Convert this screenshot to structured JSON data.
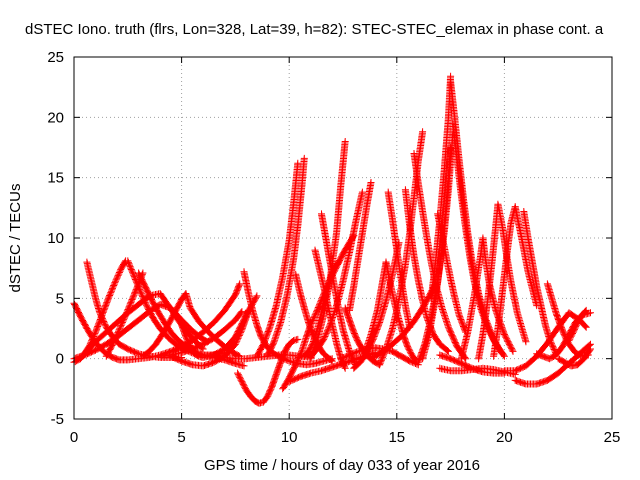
{
  "chart_data": {
    "type": "scatter",
    "title": "dSTEC Iono. truth (flrs, Lon=328, Lat=39, h=82): STEC-STEC_elemax in phase cont. a",
    "xlabel": "GPS time / hours of day 033 of year 2016",
    "ylabel": "dSTEC  / TECUs",
    "xlim": [
      0,
      25
    ],
    "ylim": [
      -5,
      25
    ],
    "xticks": [
      0,
      5,
      10,
      15,
      20,
      25
    ],
    "yticks": [
      -5,
      0,
      5,
      10,
      15,
      20,
      25
    ],
    "grid": true,
    "marker": "+",
    "color": "#ff0000",
    "series": [
      {
        "x": [
          0.0,
          0.5,
          1.0,
          1.5,
          2.0,
          2.5,
          3.0,
          3.5,
          4.0,
          4.5,
          5.0,
          5.5,
          6.0,
          6.2
        ],
        "y": [
          0.0,
          0.3,
          0.7,
          1.2,
          1.8,
          2.5,
          3.2,
          3.9,
          4.5,
          4.2,
          3.2,
          2.3,
          1.6,
          1.4
        ]
      },
      {
        "x": [
          0.0,
          0.3,
          0.6,
          0.9,
          1.2,
          1.5,
          1.8,
          2.1,
          2.5,
          3.0,
          3.5,
          4.0,
          4.5,
          5.0,
          5.5,
          6.0,
          6.5,
          7.0,
          7.5,
          7.7
        ],
        "y": [
          4.6,
          3.5,
          2.5,
          1.6,
          0.9,
          0.4,
          0.1,
          -0.1,
          -0.1,
          0.0,
          0.1,
          0.3,
          0.6,
          1.0,
          1.5,
          2.2,
          3.0,
          4.0,
          5.3,
          6.2
        ]
      },
      {
        "x": [
          0.0,
          0.3,
          0.6,
          1.0,
          1.5,
          2.0,
          2.5,
          3.0,
          3.5,
          4.0,
          4.5,
          5.0,
          5.5,
          6.0
        ],
        "y": [
          -0.3,
          0.0,
          0.6,
          1.4,
          2.2,
          3.0,
          3.8,
          4.5,
          5.2,
          5.4,
          4.1,
          2.8,
          1.7,
          0.8
        ]
      },
      {
        "x": [
          0.6,
          0.8,
          1.0,
          1.2,
          1.5,
          1.8,
          2.1,
          2.5,
          3.0,
          3.5,
          4.0,
          4.5,
          5.0
        ],
        "y": [
          8.0,
          6.5,
          5.0,
          3.8,
          2.6,
          1.8,
          1.2,
          0.8,
          0.4,
          0.2,
          0.1,
          0.1,
          0.1
        ]
      },
      {
        "x": [
          0.4,
          0.7,
          1.0,
          1.3,
          1.6,
          1.9,
          2.2,
          2.4
        ],
        "y": [
          0.2,
          1.0,
          2.2,
          3.6,
          5.0,
          6.3,
          7.5,
          8.1
        ]
      },
      {
        "x": [
          2.5,
          2.8,
          3.1,
          3.4,
          3.7,
          4.0,
          4.4,
          4.8,
          5.2,
          5.6,
          6.0,
          6.4,
          6.8,
          7.0
        ],
        "y": [
          8.1,
          6.8,
          5.5,
          4.3,
          3.3,
          2.5,
          1.7,
          1.1,
          0.7,
          0.4,
          0.3,
          0.3,
          0.4,
          0.5
        ]
      },
      {
        "x": [
          1.5,
          1.8,
          2.1,
          2.4,
          2.7,
          3.0,
          3.2
        ],
        "y": [
          0.2,
          1.2,
          2.4,
          3.6,
          4.9,
          6.2,
          7.1
        ]
      },
      {
        "x": [
          3.0,
          3.3,
          3.6,
          3.9,
          4.2,
          4.5,
          4.8,
          5.2,
          5.6,
          6.0,
          6.5,
          7.0,
          7.5,
          7.9
        ],
        "y": [
          7.1,
          6.0,
          4.9,
          3.9,
          3.0,
          2.2,
          1.6,
          1.0,
          0.6,
          0.3,
          0.1,
          -0.1,
          -0.4,
          -0.6
        ]
      },
      {
        "x": [
          3.2,
          3.5,
          3.8,
          4.1,
          4.4,
          4.7,
          5.0,
          5.2,
          5.4,
          5.8,
          6.2,
          6.6,
          7.0,
          7.4,
          7.7
        ],
        "y": [
          0.2,
          0.6,
          1.2,
          2.0,
          2.9,
          3.9,
          4.9,
          5.4,
          4.2,
          3.1,
          2.3,
          1.6,
          1.0,
          0.5,
          0.2
        ]
      },
      {
        "x": [
          4.0,
          4.5,
          5.0,
          5.5,
          6.0,
          6.5,
          7.0,
          7.5,
          7.8
        ],
        "y": [
          0.2,
          0.3,
          0.5,
          0.8,
          1.2,
          1.7,
          2.4,
          3.2,
          3.9
        ]
      },
      {
        "x": [
          5.0,
          5.2,
          5.4,
          5.6,
          5.8,
          6.0,
          6.5,
          7.0,
          7.5,
          8.0,
          8.5
        ],
        "y": [
          2.8,
          1.8,
          1.0,
          0.4,
          0.2,
          0.1,
          0.3,
          0.8,
          1.8,
          3.6,
          5.2
        ]
      },
      {
        "x": [
          4.5,
          5.0,
          5.5,
          6.0,
          6.5,
          7.0,
          7.5,
          7.8,
          8.0,
          8.1
        ],
        "y": [
          0.2,
          -0.2,
          -0.5,
          -0.6,
          -0.3,
          0.2,
          1.2,
          2.4,
          3.4,
          4.0
        ]
      },
      {
        "x": [
          7.6,
          7.8,
          8.0,
          8.2,
          8.4,
          8.6,
          8.8,
          9.0,
          9.2,
          9.4,
          9.6,
          9.8,
          10.0,
          10.2,
          10.4
        ],
        "y": [
          -1.2,
          -1.9,
          -2.6,
          -3.1,
          -3.5,
          -3.7,
          -3.6,
          -3.1,
          -2.3,
          -1.3,
          -0.3,
          0.6,
          1.2,
          1.5,
          1.6
        ]
      },
      {
        "x": [
          7.9,
          8.1,
          8.3,
          8.5,
          8.7,
          9.0,
          9.3,
          9.6,
          10.0,
          10.4,
          10.8,
          11.2,
          11.6,
          12.0
        ],
        "y": [
          7.2,
          5.5,
          4.0,
          2.8,
          1.8,
          0.9,
          0.4,
          0.1,
          -0.2,
          -0.4,
          -0.5,
          -0.4,
          -0.2,
          0.0
        ]
      },
      {
        "x": [
          6.5,
          7.0,
          7.5,
          8.0,
          8.5,
          9.0,
          9.5,
          10.0,
          10.5,
          11.0
        ],
        "y": [
          0.3,
          0.1,
          0.0,
          0.0,
          0.1,
          0.2,
          0.3,
          0.3,
          0.2,
          0.1
        ]
      },
      {
        "x": [
          8.5,
          8.8,
          9.1,
          9.4,
          9.7,
          10.0,
          10.2,
          10.4
        ],
        "y": [
          0.2,
          1.2,
          2.6,
          4.4,
          6.8,
          9.8,
          12.8,
          16.2
        ]
      },
      {
        "x": [
          9.0,
          9.3,
          9.6,
          9.9,
          10.2,
          10.4,
          10.6,
          10.7
        ],
        "y": [
          0.3,
          1.4,
          3.0,
          5.2,
          8.2,
          11.0,
          14.5,
          16.6
        ]
      },
      {
        "x": [
          9.7,
          10.0,
          10.3,
          10.6,
          10.8,
          11.0,
          11.3,
          11.6,
          12.0,
          12.5,
          13.0
        ],
        "y": [
          -2.5,
          -1.6,
          -0.5,
          0.7,
          1.8,
          2.8,
          4.0,
          5.3,
          6.9,
          8.7,
          10.2
        ]
      },
      {
        "x": [
          10.0,
          10.5,
          11.0,
          11.5,
          12.0,
          12.5,
          13.0,
          13.5,
          14.0
        ],
        "y": [
          -1.9,
          -1.5,
          -1.2,
          -1.0,
          -0.7,
          -0.4,
          -0.1,
          0.2,
          0.5
        ]
      },
      {
        "x": [
          10.3,
          10.5,
          10.7,
          10.9,
          11.1,
          11.3,
          11.6,
          12.0
        ],
        "y": [
          7.0,
          5.5,
          4.2,
          3.0,
          2.0,
          1.2,
          0.4,
          -0.2
        ]
      },
      {
        "x": [
          10.7,
          10.9,
          11.1,
          11.3,
          11.5,
          11.7,
          11.9,
          12.1,
          12.3
        ],
        "y": [
          0.2,
          0.6,
          1.3,
          2.4,
          3.8,
          5.2,
          6.6,
          7.6,
          8.0
        ]
      },
      {
        "x": [
          11.0,
          11.3,
          11.6,
          11.9,
          12.2,
          12.5,
          12.8,
          13.1,
          13.4
        ],
        "y": [
          0.2,
          0.8,
          1.6,
          2.8,
          4.4,
          6.4,
          8.8,
          11.4,
          13.8
        ]
      },
      {
        "x": [
          11.0,
          11.3,
          11.6,
          11.9,
          12.2,
          12.4,
          12.6
        ],
        "y": [
          0.0,
          1.5,
          3.6,
          6.6,
          10.4,
          14.4,
          18.0
        ]
      },
      {
        "x": [
          11.2,
          11.4,
          11.6,
          11.8,
          12.0,
          12.2,
          12.4,
          12.6
        ],
        "y": [
          9.0,
          7.5,
          6.0,
          4.4,
          2.8,
          1.3,
          0.0,
          -0.8
        ]
      },
      {
        "x": [
          11.5,
          11.7,
          11.9,
          12.1,
          12.3,
          12.5,
          12.8,
          13.1
        ],
        "y": [
          12.0,
          10.0,
          8.0,
          6.0,
          4.1,
          2.4,
          0.6,
          -0.6
        ]
      },
      {
        "x": [
          12.4,
          12.8,
          13.2,
          13.6,
          14.0,
          14.4,
          14.8,
          15.2,
          15.6,
          16.0
        ],
        "y": [
          0.0,
          0.3,
          0.6,
          0.8,
          0.9,
          0.8,
          0.6,
          0.2,
          -0.2,
          -0.5
        ]
      },
      {
        "x": [
          12.6,
          12.8,
          13.0,
          13.2,
          13.4,
          13.6,
          13.9,
          14.2
        ],
        "y": [
          4.2,
          3.2,
          2.2,
          1.4,
          0.8,
          0.3,
          -0.2,
          -0.5
        ]
      },
      {
        "x": [
          12.8,
          13.0,
          13.2,
          13.4,
          13.6,
          13.8
        ],
        "y": [
          4.0,
          6.0,
          8.2,
          10.4,
          12.6,
          14.6
        ]
      },
      {
        "x": [
          13.0,
          13.3,
          13.6,
          13.9,
          14.2,
          14.5,
          14.8,
          15.1
        ],
        "y": [
          -0.8,
          -0.3,
          0.5,
          1.6,
          3.0,
          4.8,
          7.0,
          9.6
        ]
      },
      {
        "x": [
          13.5,
          13.8,
          14.1,
          14.3,
          14.5
        ],
        "y": [
          0.4,
          2.0,
          4.0,
          6.0,
          8.0
        ]
      },
      {
        "x": [
          14.5,
          14.7,
          14.9,
          15.1,
          15.3,
          15.5,
          15.7,
          15.9
        ],
        "y": [
          8.0,
          6.2,
          4.6,
          3.2,
          2.0,
          1.0,
          0.3,
          -0.2
        ]
      },
      {
        "x": [
          13.8,
          14.3,
          14.8,
          15.3,
          15.8,
          16.3,
          16.8
        ],
        "y": [
          0.0,
          0.5,
          1.2,
          2.0,
          3.1,
          4.5,
          6.2
        ]
      },
      {
        "x": [
          14.6,
          14.8,
          15.0,
          15.2,
          15.4,
          15.6
        ],
        "y": [
          13.8,
          11.5,
          9.0,
          6.6,
          4.4,
          2.6
        ]
      },
      {
        "x": [
          14.2,
          14.5,
          14.8,
          15.0,
          15.2,
          15.4,
          15.6,
          15.8,
          16.0,
          16.2
        ],
        "y": [
          -0.5,
          0.8,
          2.5,
          4.0,
          5.8,
          7.8,
          10.4,
          13.4,
          16.4,
          18.8
        ]
      },
      {
        "x": [
          15.4,
          15.6,
          15.8,
          16.0,
          16.2,
          16.4,
          16.7,
          17.0,
          17.4
        ],
        "y": [
          14.0,
          11.0,
          8.5,
          6.5,
          4.8,
          3.4,
          2.0,
          1.2,
          0.6
        ]
      },
      {
        "x": [
          15.8,
          16.0,
          16.2,
          16.4,
          16.6,
          16.8,
          17.1,
          17.4,
          17.8,
          18.2
        ],
        "y": [
          17.0,
          14.5,
          12.2,
          10.0,
          8.0,
          6.2,
          4.2,
          2.6,
          1.0,
          0.0
        ]
      },
      {
        "x": [
          16.0,
          16.3,
          16.6,
          16.9,
          17.2,
          17.4,
          17.6
        ],
        "y": [
          -0.3,
          1.2,
          3.4,
          6.4,
          10.4,
          14.0,
          18.6
        ]
      },
      {
        "x": [
          16.2,
          16.5,
          16.8,
          17.1,
          17.3,
          17.5
        ],
        "y": [
          0.0,
          2.0,
          5.0,
          9.2,
          13.0,
          17.5
        ]
      },
      {
        "x": [
          16.6,
          16.8,
          17.0,
          17.2,
          17.4,
          17.5
        ],
        "y": [
          5.0,
          8.0,
          11.5,
          15.5,
          20.0,
          23.4
        ]
      },
      {
        "x": [
          17.5,
          17.7,
          17.9,
          18.1,
          18.3,
          18.5,
          18.8,
          19.1,
          19.5,
          19.9
        ],
        "y": [
          23.0,
          19.8,
          16.4,
          13.2,
          10.4,
          8.0,
          5.4,
          3.4,
          1.6,
          0.4
        ]
      },
      {
        "x": [
          17.6,
          17.8,
          18.0,
          18.2,
          18.4,
          18.6,
          18.9,
          19.2,
          19.6,
          20.0
        ],
        "y": [
          19.5,
          16.5,
          13.5,
          10.8,
          8.4,
          6.4,
          4.2,
          2.6,
          1.2,
          0.2
        ]
      },
      {
        "x": [
          16.9,
          17.1,
          17.3,
          17.5,
          17.7,
          17.9,
          18.2
        ],
        "y": [
          12.0,
          10.2,
          8.4,
          6.6,
          5.0,
          3.6,
          2.2
        ]
      },
      {
        "x": [
          17.0,
          17.5,
          18.0,
          18.5,
          19.0,
          19.5,
          20.0,
          20.5
        ],
        "y": [
          -0.8,
          -1.0,
          -1.0,
          -0.9,
          -0.8,
          -0.9,
          -1.1,
          -1.3
        ]
      },
      {
        "x": [
          17.0,
          17.5,
          18.0,
          18.5,
          19.0,
          19.5,
          20.0
        ],
        "y": [
          0.3,
          0.0,
          -0.4,
          -0.8,
          -1.1,
          -1.2,
          -1.2
        ]
      },
      {
        "x": [
          18.0,
          18.3,
          18.6,
          18.9,
          19.0,
          19.1,
          19.3,
          19.6,
          20.0,
          20.4
        ],
        "y": [
          0.0,
          2.2,
          5.2,
          8.6,
          10.0,
          8.5,
          6.2,
          4.0,
          2.0,
          0.6
        ]
      },
      {
        "x": [
          18.8,
          19.0,
          19.2,
          19.4,
          19.6,
          19.7,
          19.9,
          20.1,
          20.3,
          20.6,
          21.0
        ],
        "y": [
          0.0,
          2.0,
          4.5,
          7.6,
          11.0,
          12.8,
          11.0,
          8.6,
          6.4,
          3.8,
          1.4
        ]
      },
      {
        "x": [
          19.5,
          19.7,
          19.9,
          20.1,
          20.3,
          20.5,
          20.8,
          21.1,
          21.5
        ],
        "y": [
          0.2,
          2.5,
          5.4,
          8.4,
          11.2,
          12.6,
          10.0,
          7.2,
          4.4
        ]
      },
      {
        "x": [
          20.5,
          21.0,
          21.5,
          22.0,
          22.5,
          23.0,
          23.5,
          24.0
        ],
        "y": [
          -1.8,
          -2.1,
          -2.1,
          -1.8,
          -1.2,
          -0.4,
          0.4,
          1.2
        ]
      },
      {
        "x": [
          20.0,
          20.5,
          21.0,
          21.5,
          22.0,
          22.5,
          23.0,
          23.5,
          23.8
        ],
        "y": [
          -1.0,
          -1.0,
          -0.6,
          0.2,
          1.3,
          2.6,
          3.8,
          3.2,
          2.6
        ]
      },
      {
        "x": [
          20.9,
          21.1,
          21.3,
          21.5,
          21.7,
          21.9,
          22.1,
          22.4
        ],
        "y": [
          12.2,
          10.0,
          8.0,
          6.0,
          4.4,
          2.8,
          1.6,
          0.4
        ]
      },
      {
        "x": [
          21.5,
          21.8,
          22.1,
          22.4,
          22.7,
          23.0,
          23.3,
          23.6,
          24.0
        ],
        "y": [
          0.4,
          0.2,
          0.0,
          0.3,
          1.0,
          2.0,
          3.0,
          3.6,
          3.8
        ]
      },
      {
        "x": [
          22.0,
          22.2,
          22.4,
          22.6,
          22.8,
          23.0,
          23.3,
          23.6,
          23.9
        ],
        "y": [
          6.2,
          5.0,
          3.8,
          2.8,
          1.9,
          1.2,
          0.5,
          0.2,
          0.3
        ]
      },
      {
        "x": [
          22.5,
          22.8,
          23.1,
          23.4,
          23.7,
          24.0
        ],
        "y": [
          0.0,
          -0.3,
          -0.6,
          -0.5,
          0.0,
          0.8
        ]
      },
      {
        "x": [
          23.0,
          23.2,
          23.4,
          23.6,
          23.8
        ],
        "y": [
          1.5,
          2.2,
          3.0,
          3.6,
          4.0
        ]
      }
    ]
  }
}
